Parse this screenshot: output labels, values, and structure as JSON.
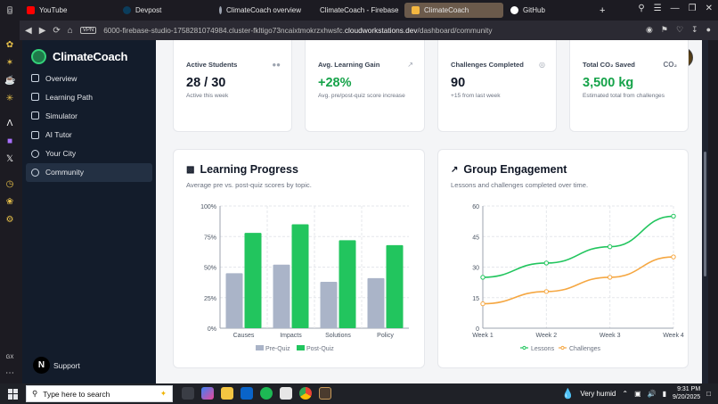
{
  "browser": {
    "tabs": [
      {
        "label": "",
        "color": "#3b3a42"
      },
      {
        "label": "YouTube",
        "color": "#ff0000"
      },
      {
        "label": "Devpost",
        "color": "#0b3d5c"
      },
      {
        "label": "ClimateCoach overview",
        "color": "#9ca3af"
      },
      {
        "label": "ClimateCoach - Firebase",
        "color": "#f97316"
      },
      {
        "label": "ClimateCoach",
        "color": "#f4b740"
      },
      {
        "label": "GitHub",
        "color": "#ffffff"
      }
    ],
    "new_tab": "+",
    "vpn_label": "VPN",
    "url_prefix": "6000-firebase-studio-1758281074984.cluster-fkltigo73ncaixtmokrzxhwsfc.",
    "url_domain": "cloudworkstations.dev",
    "url_path": "/dashboard/community"
  },
  "app": {
    "name": "ClimateCoach",
    "nav": [
      {
        "label": "Overview",
        "icon": "grid-icon"
      },
      {
        "label": "Learning Path",
        "icon": "book-icon"
      },
      {
        "label": "Simulator",
        "icon": "monitor-icon"
      },
      {
        "label": "AI Tutor",
        "icon": "bot-icon"
      },
      {
        "label": "Your City",
        "icon": "pin-icon"
      },
      {
        "label": "Community",
        "icon": "users-icon",
        "active": true
      }
    ],
    "support_label": "Support",
    "support_badge": "N"
  },
  "stats": [
    {
      "label": "Active Students",
      "value": "28 / 30",
      "sub": "Active this week",
      "green": false
    },
    {
      "label": "Avg. Learning Gain",
      "value": "+28%",
      "sub": "Avg. pre/post-quiz score increase",
      "green": true
    },
    {
      "label": "Challenges Completed",
      "value": "90",
      "sub": "+15 from last week",
      "green": false
    },
    {
      "label": "Total CO₂ Saved",
      "value": "3,500 kg",
      "sub": "Estimated total from challenges",
      "green": true,
      "icon_text": "CO₂"
    }
  ],
  "learning_progress": {
    "title": "Learning Progress",
    "subtitle": "Average pre vs. post-quiz scores by topic."
  },
  "group_engagement": {
    "title": "Group Engagement",
    "subtitle": "Lessons and challenges completed over time."
  },
  "chart_data": [
    {
      "type": "bar",
      "title": "Learning Progress",
      "categories": [
        "Causes",
        "Impacts",
        "Solutions",
        "Policy"
      ],
      "series": [
        {
          "name": "Pre-Quiz",
          "values": [
            45,
            52,
            38,
            41
          ],
          "color": "#aab4c8"
        },
        {
          "name": "Post-Quiz",
          "values": [
            78,
            85,
            72,
            68
          ],
          "color": "#22c55e"
        }
      ],
      "ylim": [
        0,
        100
      ],
      "yticks": [
        "0%",
        "25%",
        "50%",
        "75%",
        "100%"
      ],
      "grid": true,
      "legend": "bottom"
    },
    {
      "type": "line",
      "title": "Group Engagement",
      "categories": [
        "Week 1",
        "Week 2",
        "Week 3",
        "Week 4"
      ],
      "series": [
        {
          "name": "Lessons",
          "values": [
            25,
            32,
            40,
            55
          ],
          "color": "#22c55e"
        },
        {
          "name": "Challenges",
          "values": [
            12,
            18,
            25,
            35
          ],
          "color": "#f5a742"
        }
      ],
      "ylim": [
        0,
        60
      ],
      "yticks": [
        "0",
        "15",
        "30",
        "45",
        "60"
      ],
      "grid": true,
      "legend": "bottom"
    }
  ],
  "taskbar": {
    "search_placeholder": "Type here to search",
    "weather": "Very humid",
    "time": "9:31 PM",
    "date": "9/20/2025"
  }
}
